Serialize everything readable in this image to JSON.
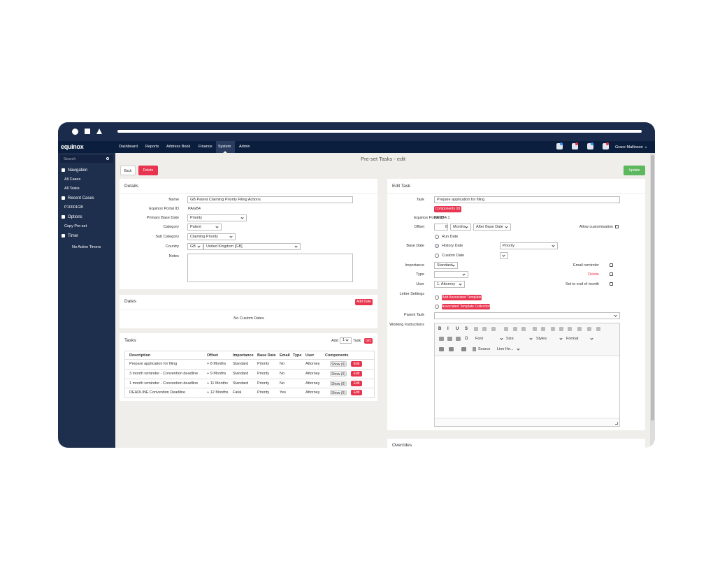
{
  "nav": {
    "logo": "equinox",
    "menu": [
      "Dashboard",
      "Reports",
      "Address Book",
      "Finance",
      "System",
      "Admin"
    ],
    "user": "Grace Mallinson"
  },
  "sidebar": {
    "search": "Search",
    "navigation": {
      "title": "Navigation",
      "items": [
        "All Cases",
        "All Tasks"
      ]
    },
    "recent": {
      "title": "Recent Cases",
      "items": [
        "P10001GB"
      ]
    },
    "options": {
      "title": "Options",
      "items": [
        "Copy Pre-set"
      ]
    },
    "timer": {
      "title": "Timer",
      "status": "No Active Timers"
    }
  },
  "page": {
    "title": "Pre-set Tasks - edit",
    "back": "Back",
    "delete": "Delete",
    "update": "Update"
  },
  "details": {
    "heading": "Details",
    "name": {
      "label": "Name",
      "value": "GB Patent Claiming Priority Filing Actions"
    },
    "portal_id": {
      "label": "Equinox Portal ID",
      "value": "PAGB4"
    },
    "primary_base_date": {
      "label": "Primary Base Date",
      "value": "Priority"
    },
    "category": {
      "label": "Category",
      "value": "Patent"
    },
    "sub_category": {
      "label": "Sub Category",
      "value": "Claiming Priority"
    },
    "country": {
      "label": "Country",
      "code": "GB",
      "name": "United Kingdom [GB]"
    },
    "notes": {
      "label": "Notes"
    }
  },
  "dates": {
    "heading": "Dates",
    "add": "Add Date",
    "empty": "No Custom Dates"
  },
  "tasks": {
    "heading": "Tasks",
    "add_label": "Add",
    "count": 1,
    "unit": "Task",
    "go": "GO",
    "columns": [
      "Description",
      "Offset",
      "Importance",
      "Base Date",
      "Email",
      "Type",
      "User",
      "Components"
    ],
    "rows": [
      {
        "description": "Prepare application for filing",
        "offset": "+ 8 Months",
        "importance": "Standard",
        "base_date": "Priority",
        "email": "No",
        "user": "Attorney",
        "components": "Show (0)",
        "action": "Edit"
      },
      {
        "description": "3 month reminder - Convention deadline",
        "offset": "+ 9 Months",
        "importance": "Standard",
        "base_date": "Priority",
        "email": "No",
        "user": "Attorney",
        "components": "Show (0)",
        "action": "Edit"
      },
      {
        "description": "1 month reminder - Convention deadline",
        "offset": "+ 11 Months",
        "importance": "Standard",
        "base_date": "Priority",
        "email": "No",
        "user": "Attorney",
        "components": "Show (0)",
        "action": "Edit"
      },
      {
        "description": "DEADLINE Convention Deadline",
        "offset": "+ 12 Months",
        "importance": "Fatal",
        "base_date": "Priority",
        "email": "Yes",
        "user": "Attorney",
        "components": "Show (0)",
        "action": "Edit"
      }
    ]
  },
  "edit_task": {
    "heading": "Edit Task",
    "task": {
      "label": "Task",
      "value": "Prepare application for filing",
      "components": "Components (0)"
    },
    "portal_id": {
      "label": "Equinox Portal ID",
      "value": "PAGB4.1"
    },
    "offset": {
      "label": "Offset",
      "amount": 8,
      "unit": "Months",
      "relation": "After Base Date",
      "allow": "Allow customisation"
    },
    "base_date": {
      "label": "Base Date",
      "options": [
        "Run Date",
        "History Date",
        "Custom Date"
      ],
      "value": "Priority"
    },
    "importance": {
      "label": "Importance",
      "value": "Standard",
      "email": "Email reminder"
    },
    "type": {
      "label": "Type",
      "delete": "Delete"
    },
    "user": {
      "label": "User",
      "value": "1. Attorney",
      "end_of_month": "Set to end of month"
    },
    "letter": {
      "label": "Letter Settings",
      "add_template": "Add Associated Template",
      "collection": "Associated Template Collection"
    },
    "parent": {
      "label": "Parent Task"
    },
    "instructions": {
      "label": "Working Instructions",
      "toolbar": [
        "B",
        "I",
        "U",
        "S",
        "Ω"
      ],
      "font": "Font",
      "size": "Size",
      "styles": "Styles",
      "format": "Format",
      "source": "Source",
      "line_height": "Line He..."
    }
  },
  "overrides": {
    "heading": "Overrides"
  }
}
